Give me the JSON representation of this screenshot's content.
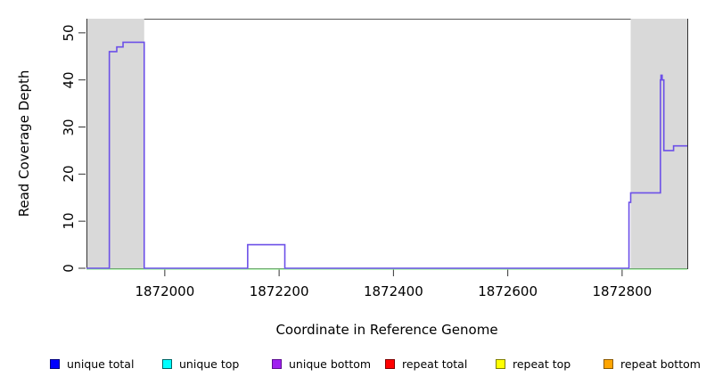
{
  "chart_data": {
    "type": "line",
    "subtype": "step",
    "title": "",
    "xlabel": "Coordinate in Reference Genome",
    "ylabel": "Read Coverage Depth",
    "x_ticks": [
      1872000,
      1872200,
      1872400,
      1872600,
      1872800
    ],
    "y_ticks": [
      0,
      10,
      20,
      30,
      40,
      50
    ],
    "xlim": [
      1871863,
      1872914
    ],
    "ylim": [
      0,
      53
    ],
    "grid": false,
    "legend_position": "bottom",
    "shaded_regions": [
      {
        "start": 1871863,
        "end": 1871964,
        "color": "#D9D9D9"
      },
      {
        "start": 1872815,
        "end": 1872914,
        "color": "#D9D9D9"
      }
    ],
    "series": [
      {
        "name": "coverage depth (unique bottom)",
        "color": "#6C50E8",
        "style": "step",
        "points": [
          [
            1871863,
            0
          ],
          [
            1871903,
            46
          ],
          [
            1871916,
            47
          ],
          [
            1871927,
            48
          ],
          [
            1871964,
            0
          ],
          [
            1872145,
            5
          ],
          [
            1872210,
            0
          ],
          [
            1872812,
            14
          ],
          [
            1872815,
            16
          ],
          [
            1872867,
            40
          ],
          [
            1872868,
            41
          ],
          [
            1872870,
            40
          ],
          [
            1872873,
            25
          ],
          [
            1872890,
            26
          ],
          [
            1872914,
            26
          ]
        ]
      },
      {
        "name": "zero baseline",
        "color": "#90EE90",
        "style": "line",
        "points": [
          [
            1871863,
            0
          ],
          [
            1872914,
            0
          ]
        ]
      }
    ],
    "legend": [
      {
        "label": "unique total",
        "color": "#0000FF",
        "border": "#000080"
      },
      {
        "label": "unique top",
        "color": "#00FFFF",
        "border": "#006666"
      },
      {
        "label": "unique bottom",
        "color": "#A020F0",
        "border": "#5D0E91"
      },
      {
        "label": "repeat total",
        "color": "#FF0000",
        "border": "#800000"
      },
      {
        "label": "repeat top",
        "color": "#FFFF00",
        "border": "#808000"
      },
      {
        "label": "repeat bottom",
        "color": "#FFA500",
        "border": "#8B5A00"
      }
    ]
  },
  "colors": {
    "band": "#D9D9D9",
    "box_top": "#5A5A5A",
    "box": "#333333",
    "tick": "#333333"
  }
}
